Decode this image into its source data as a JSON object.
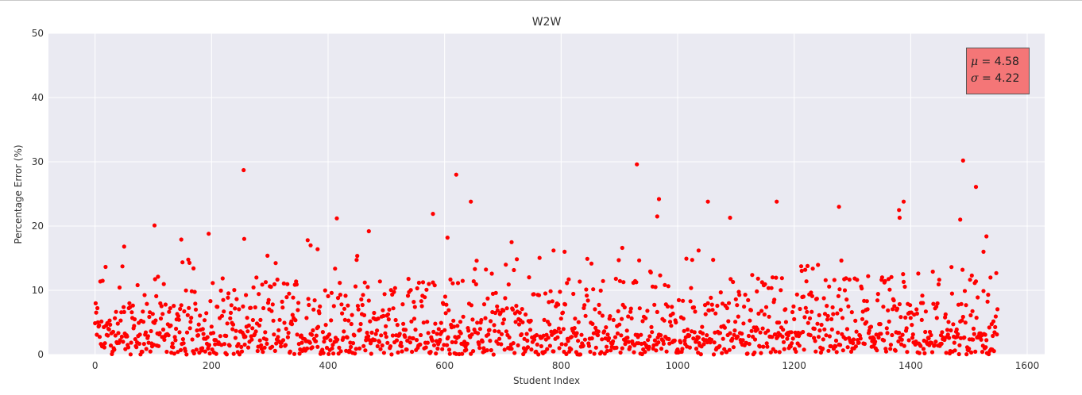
{
  "chart_data": {
    "type": "scatter",
    "title": "W2W",
    "xlabel": "Student Index",
    "ylabel": "Percentage Error (%)",
    "xlim": [
      -80,
      1630
    ],
    "ylim": [
      0,
      50
    ],
    "xticks": [
      0,
      200,
      400,
      600,
      800,
      1000,
      1200,
      1400,
      1600
    ],
    "yticks": [
      0,
      10,
      20,
      30,
      40,
      50
    ],
    "grid": true,
    "point_color": "#ff0000",
    "background_color": "#eaeaf2",
    "n_points": 1550,
    "series": [
      {
        "values_note_free": true,
        "outliers": [
          {
            "x": 255,
            "y": 28.7
          },
          {
            "x": 620,
            "y": 28.0
          },
          {
            "x": 930,
            "y": 29.6
          },
          {
            "x": 1490,
            "y": 30.2
          },
          {
            "x": 1512,
            "y": 26.1
          },
          {
            "x": 645,
            "y": 23.8
          },
          {
            "x": 580,
            "y": 21.9
          },
          {
            "x": 968,
            "y": 24.2
          },
          {
            "x": 965,
            "y": 21.5
          },
          {
            "x": 1052,
            "y": 23.8
          },
          {
            "x": 1090,
            "y": 21.3
          },
          {
            "x": 1170,
            "y": 23.8
          },
          {
            "x": 1277,
            "y": 23.0
          },
          {
            "x": 1380,
            "y": 22.5
          },
          {
            "x": 1388,
            "y": 23.8
          },
          {
            "x": 1381,
            "y": 21.3
          },
          {
            "x": 1485,
            "y": 21.0
          },
          {
            "x": 102,
            "y": 20.1
          },
          {
            "x": 415,
            "y": 21.2
          },
          {
            "x": 470,
            "y": 19.2
          },
          {
            "x": 195,
            "y": 18.8
          },
          {
            "x": 256,
            "y": 18.0
          },
          {
            "x": 148,
            "y": 17.9
          },
          {
            "x": 365,
            "y": 17.8
          },
          {
            "x": 605,
            "y": 18.2
          },
          {
            "x": 1530,
            "y": 18.4
          },
          {
            "x": 50,
            "y": 16.8
          },
          {
            "x": 370,
            "y": 17.0
          },
          {
            "x": 382,
            "y": 16.4
          },
          {
            "x": 715,
            "y": 17.5
          },
          {
            "x": 787,
            "y": 16.2
          },
          {
            "x": 806,
            "y": 16.0
          },
          {
            "x": 905,
            "y": 16.6
          },
          {
            "x": 1036,
            "y": 16.2
          },
          {
            "x": 1525,
            "y": 16.0
          },
          {
            "x": 1505,
            "y": 12.3
          }
        ]
      }
    ],
    "annotation": {
      "mu": "4.58",
      "sigma": "4.22"
    }
  },
  "stats": {
    "mu_symbol": "μ",
    "mu_text": " = 4.58",
    "sigma_symbol": "σ",
    "sigma_text": " = 4.22"
  }
}
